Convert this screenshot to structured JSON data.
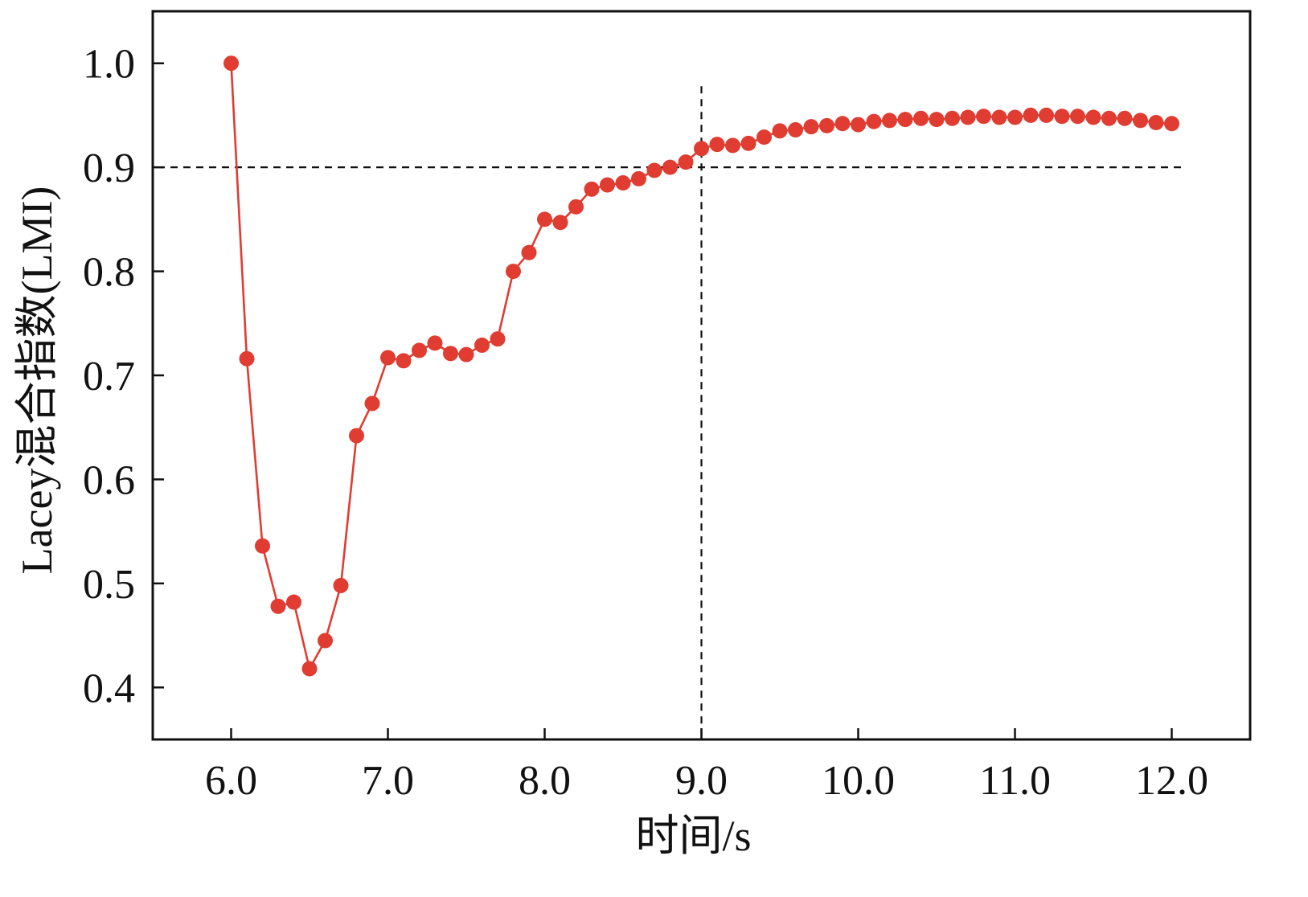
{
  "chart_data": {
    "type": "line",
    "title": "",
    "xlabel": "时间/s",
    "ylabel": "Lacey混合指数(LMI)",
    "xlim": [
      5.5,
      12.5
    ],
    "ylim": [
      0.35,
      1.05
    ],
    "xticks": [
      6.0,
      7.0,
      8.0,
      9.0,
      10.0,
      11.0,
      12.0
    ],
    "xtick_labels": [
      "6.0",
      "7.0",
      "8.0",
      "9.0",
      "10.0",
      "11.0",
      "12.0"
    ],
    "yticks": [
      0.4,
      0.5,
      0.6,
      0.7,
      0.8,
      0.9,
      1.0
    ],
    "ytick_labels": [
      "0.4",
      "0.5",
      "0.6",
      "0.7",
      "0.8",
      "0.9",
      "1.0"
    ],
    "grid": false,
    "series": [
      {
        "color": "#e03c31",
        "x": [
          6.0,
          6.1,
          6.2,
          6.3,
          6.4,
          6.5,
          6.6,
          6.7,
          6.8,
          6.9,
          7.0,
          7.1,
          7.2,
          7.3,
          7.4,
          7.5,
          7.6,
          7.7,
          7.8,
          7.9,
          8.0,
          8.1,
          8.2,
          8.3,
          8.4,
          8.5,
          8.6,
          8.7,
          8.8,
          8.9,
          9.0,
          9.1,
          9.2,
          9.3,
          9.4,
          9.5,
          9.6,
          9.7,
          9.8,
          9.9,
          10.0,
          10.1,
          10.2,
          10.3,
          10.4,
          10.5,
          10.6,
          10.7,
          10.8,
          10.9,
          11.0,
          11.1,
          11.2,
          11.3,
          11.4,
          11.5,
          11.6,
          11.7,
          11.8,
          11.9,
          12.0
        ],
        "y": [
          1.0,
          0.716,
          0.536,
          0.478,
          0.482,
          0.418,
          0.445,
          0.498,
          0.642,
          0.673,
          0.717,
          0.714,
          0.724,
          0.731,
          0.721,
          0.72,
          0.729,
          0.735,
          0.8,
          0.818,
          0.85,
          0.847,
          0.862,
          0.879,
          0.883,
          0.885,
          0.889,
          0.897,
          0.9,
          0.905,
          0.918,
          0.922,
          0.921,
          0.923,
          0.929,
          0.935,
          0.936,
          0.939,
          0.94,
          0.942,
          0.941,
          0.944,
          0.945,
          0.946,
          0.947,
          0.946,
          0.947,
          0.948,
          0.949,
          0.948,
          0.948,
          0.95,
          0.95,
          0.949,
          0.949,
          0.948,
          0.947,
          0.947,
          0.945,
          0.943,
          0.942
        ]
      }
    ],
    "reference_lines": [
      {
        "orientation": "horizontal",
        "value": 0.9,
        "style": "dashed",
        "color": "#111111"
      },
      {
        "orientation": "vertical",
        "value": 9.0,
        "style": "dashed",
        "color": "#111111"
      }
    ]
  }
}
